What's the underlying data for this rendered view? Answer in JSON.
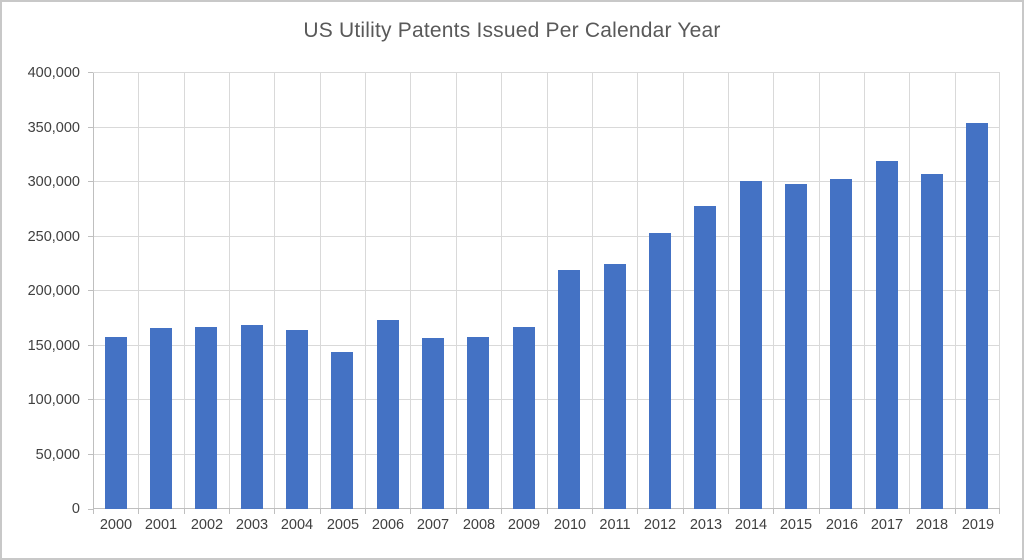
{
  "canvas": {
    "background": "#ffffff",
    "border_color": "#c8c8c8"
  },
  "chart_data": {
    "type": "bar",
    "title": "US Utility Patents Issued Per Calendar Year",
    "categories": [
      "2000",
      "2001",
      "2002",
      "2003",
      "2004",
      "2005",
      "2006",
      "2007",
      "2008",
      "2009",
      "2010",
      "2011",
      "2012",
      "2013",
      "2014",
      "2015",
      "2016",
      "2017",
      "2018",
      "2019"
    ],
    "values": [
      157494,
      166035,
      167331,
      169023,
      164290,
      143806,
      173772,
      157282,
      157772,
      167349,
      219614,
      224505,
      253155,
      277835,
      300678,
      298407,
      303049,
      318829,
      307759,
      354430
    ],
    "xlabel": "",
    "ylabel": "",
    "ylim": [
      0,
      400000
    ],
    "ytick_step": 50000,
    "ytick_labels": [
      "0",
      "50,000",
      "100,000",
      "150,000",
      "200,000",
      "250,000",
      "300,000",
      "350,000",
      "400,000"
    ],
    "grid": "horizontal-and-vertical",
    "legend": "none",
    "colors": {
      "bar": "#4472c4",
      "gridline": "#d9d9d9",
      "axis": "#bfbfbf",
      "title_text": "#595959",
      "tick_text": "#404040"
    }
  }
}
